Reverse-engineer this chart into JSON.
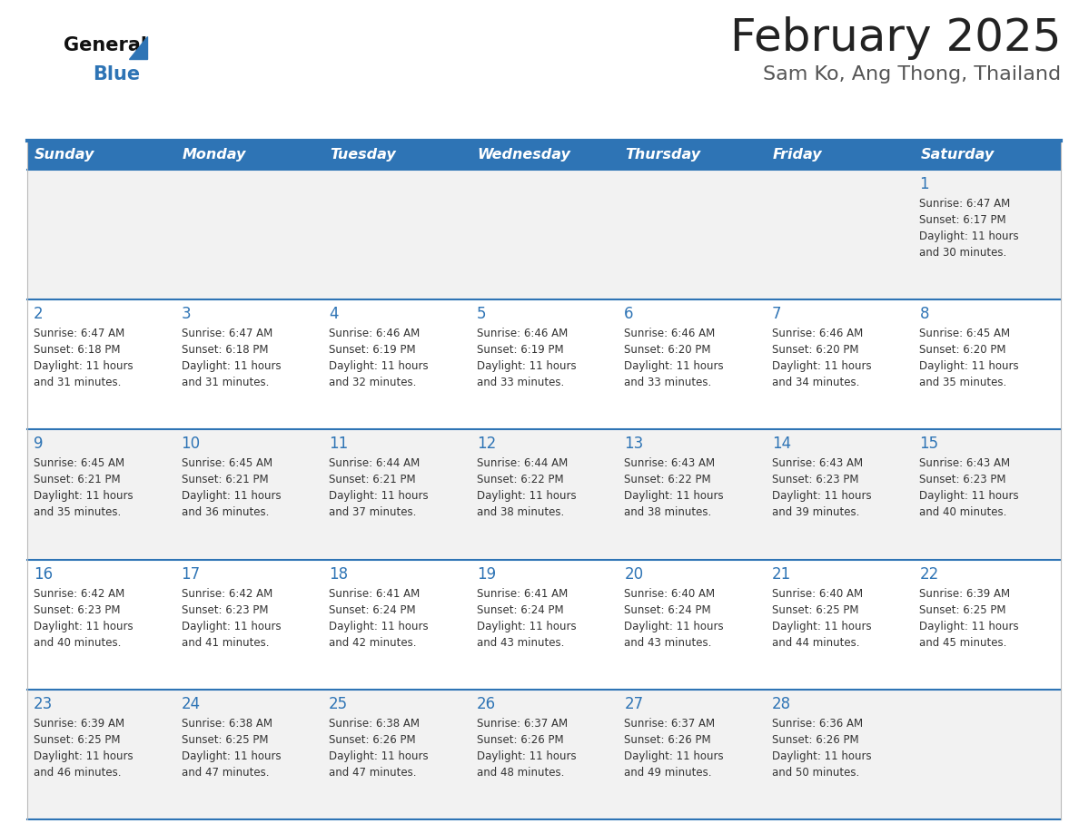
{
  "title": "February 2025",
  "subtitle": "Sam Ko, Ang Thong, Thailand",
  "header_bg_color": "#2E74B5",
  "header_text_color": "#FFFFFF",
  "row_bg_colors": [
    "#F2F2F2",
    "#FFFFFF",
    "#F2F2F2",
    "#FFFFFF",
    "#F2F2F2"
  ],
  "border_color": "#2E74B5",
  "day_headers": [
    "Sunday",
    "Monday",
    "Tuesday",
    "Wednesday",
    "Thursday",
    "Friday",
    "Saturday"
  ],
  "title_color": "#222222",
  "subtitle_color": "#555555",
  "day_number_color": "#2E74B5",
  "cell_text_color": "#333333",
  "logo_general_color": "#111111",
  "logo_blue_color": "#2E74B5",
  "calendar_data": [
    [
      null,
      null,
      null,
      null,
      null,
      null,
      {
        "day": 1,
        "sunrise": "6:47 AM",
        "sunset": "6:17 PM",
        "daylight": "11 hours and 30 minutes."
      }
    ],
    [
      {
        "day": 2,
        "sunrise": "6:47 AM",
        "sunset": "6:18 PM",
        "daylight": "11 hours and 31 minutes."
      },
      {
        "day": 3,
        "sunrise": "6:47 AM",
        "sunset": "6:18 PM",
        "daylight": "11 hours and 31 minutes."
      },
      {
        "day": 4,
        "sunrise": "6:46 AM",
        "sunset": "6:19 PM",
        "daylight": "11 hours and 32 minutes."
      },
      {
        "day": 5,
        "sunrise": "6:46 AM",
        "sunset": "6:19 PM",
        "daylight": "11 hours and 33 minutes."
      },
      {
        "day": 6,
        "sunrise": "6:46 AM",
        "sunset": "6:20 PM",
        "daylight": "11 hours and 33 minutes."
      },
      {
        "day": 7,
        "sunrise": "6:46 AM",
        "sunset": "6:20 PM",
        "daylight": "11 hours and 34 minutes."
      },
      {
        "day": 8,
        "sunrise": "6:45 AM",
        "sunset": "6:20 PM",
        "daylight": "11 hours and 35 minutes."
      }
    ],
    [
      {
        "day": 9,
        "sunrise": "6:45 AM",
        "sunset": "6:21 PM",
        "daylight": "11 hours and 35 minutes."
      },
      {
        "day": 10,
        "sunrise": "6:45 AM",
        "sunset": "6:21 PM",
        "daylight": "11 hours and 36 minutes."
      },
      {
        "day": 11,
        "sunrise": "6:44 AM",
        "sunset": "6:21 PM",
        "daylight": "11 hours and 37 minutes."
      },
      {
        "day": 12,
        "sunrise": "6:44 AM",
        "sunset": "6:22 PM",
        "daylight": "11 hours and 38 minutes."
      },
      {
        "day": 13,
        "sunrise": "6:43 AM",
        "sunset": "6:22 PM",
        "daylight": "11 hours and 38 minutes."
      },
      {
        "day": 14,
        "sunrise": "6:43 AM",
        "sunset": "6:23 PM",
        "daylight": "11 hours and 39 minutes."
      },
      {
        "day": 15,
        "sunrise": "6:43 AM",
        "sunset": "6:23 PM",
        "daylight": "11 hours and 40 minutes."
      }
    ],
    [
      {
        "day": 16,
        "sunrise": "6:42 AM",
        "sunset": "6:23 PM",
        "daylight": "11 hours and 40 minutes."
      },
      {
        "day": 17,
        "sunrise": "6:42 AM",
        "sunset": "6:23 PM",
        "daylight": "11 hours and 41 minutes."
      },
      {
        "day": 18,
        "sunrise": "6:41 AM",
        "sunset": "6:24 PM",
        "daylight": "11 hours and 42 minutes."
      },
      {
        "day": 19,
        "sunrise": "6:41 AM",
        "sunset": "6:24 PM",
        "daylight": "11 hours and 43 minutes."
      },
      {
        "day": 20,
        "sunrise": "6:40 AM",
        "sunset": "6:24 PM",
        "daylight": "11 hours and 43 minutes."
      },
      {
        "day": 21,
        "sunrise": "6:40 AM",
        "sunset": "6:25 PM",
        "daylight": "11 hours and 44 minutes."
      },
      {
        "day": 22,
        "sunrise": "6:39 AM",
        "sunset": "6:25 PM",
        "daylight": "11 hours and 45 minutes."
      }
    ],
    [
      {
        "day": 23,
        "sunrise": "6:39 AM",
        "sunset": "6:25 PM",
        "daylight": "11 hours and 46 minutes."
      },
      {
        "day": 24,
        "sunrise": "6:38 AM",
        "sunset": "6:25 PM",
        "daylight": "11 hours and 47 minutes."
      },
      {
        "day": 25,
        "sunrise": "6:38 AM",
        "sunset": "6:26 PM",
        "daylight": "11 hours and 47 minutes."
      },
      {
        "day": 26,
        "sunrise": "6:37 AM",
        "sunset": "6:26 PM",
        "daylight": "11 hours and 48 minutes."
      },
      {
        "day": 27,
        "sunrise": "6:37 AM",
        "sunset": "6:26 PM",
        "daylight": "11 hours and 49 minutes."
      },
      {
        "day": 28,
        "sunrise": "6:36 AM",
        "sunset": "6:26 PM",
        "daylight": "11 hours and 50 minutes."
      },
      null
    ]
  ]
}
